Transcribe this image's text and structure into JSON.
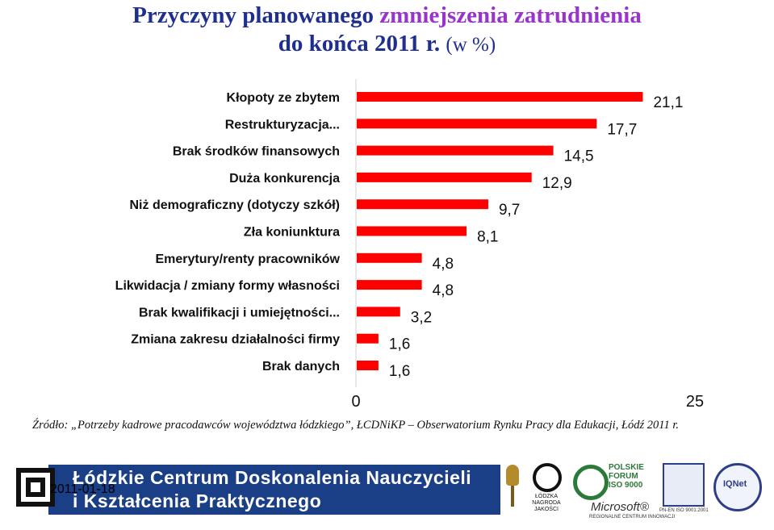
{
  "header": {
    "title_part1": "Przyczyny planowanego",
    "title_part2": "zmniejszenia zatrudnienia",
    "title_part3": "do końca 2011 r.",
    "title_unit": "(w %)"
  },
  "chart_data": {
    "type": "bar",
    "orientation": "horizontal",
    "categories": [
      "Kłopoty ze zbytem",
      "Restrukturyzacja...",
      "Brak środków finansowych",
      "Duża konkurencja",
      "Niż demograficzny (dotyczy szkół)",
      "Zła koniunktura",
      "Emerytury/renty pracowników",
      "Likwidacja / zmiany formy własności",
      "Brak kwalifikacji i umiejętności...",
      "Zmiana zakresu działalności firmy",
      "Brak danych"
    ],
    "values": [
      21.1,
      17.7,
      14.5,
      12.9,
      9.7,
      8.1,
      4.8,
      4.8,
      3.2,
      1.6,
      1.6
    ],
    "value_labels": [
      "21,1",
      "17,7",
      "14,5",
      "12,9",
      "9,7",
      "8,1",
      "4,8",
      "4,8",
      "3,2",
      "1,6",
      "1,6"
    ],
    "xlim": [
      0,
      25
    ],
    "x_ticks": [
      "0",
      "25"
    ],
    "bar_color": "#ff0000",
    "grid": false,
    "legend": "none"
  },
  "source": "Źródło: „Potrzeby kadrowe pracodawców województwa łódzkiego”, ŁCDNiKP – Obserwatorium Rynku Pracy dla Edukacji, Łódź 2011 r.",
  "footer": {
    "logo_line1": "Łódzkie Centrum Doskonalenia Nauczycieli",
    "logo_line2": "i Kształcenia Praktycznego",
    "date": "2011-01-18",
    "lodzka_text": "ŁÓDZKA NAGRODA JAKOŚCI",
    "forum_text": "POLSKIE FORUM ISO 9000",
    "microsoft_text": "Microsoft®",
    "microsoft_sub": "REGIONALNE CENTRUM INNOWACJI",
    "cert_text": "PN-EN ISO 9001:2001",
    "iqnet_text": "IQNet"
  }
}
